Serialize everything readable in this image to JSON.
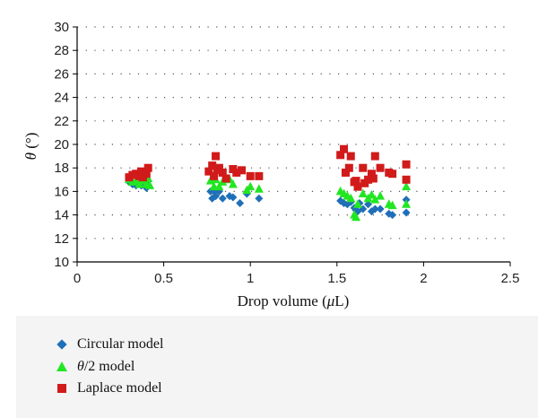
{
  "chart_data": {
    "type": "scatter",
    "xlabel_pre": "Drop volume (",
    "xlabel_mu": "μ",
    "xlabel_post": "L)",
    "ylabel_theta": "θ",
    "ylabel_unit": " (°)",
    "xlim": [
      0,
      2.5
    ],
    "ylim": [
      10,
      30
    ],
    "x_ticks": [
      0,
      0.5,
      1,
      1.5,
      2,
      2.5
    ],
    "x_tick_labels": [
      "0",
      "0.5",
      "1",
      "1.5",
      "2",
      "2.5"
    ],
    "y_ticks": [
      10,
      12,
      14,
      16,
      18,
      20,
      22,
      24,
      26,
      28,
      30
    ],
    "y_tick_labels": [
      "10",
      "12",
      "14",
      "16",
      "18",
      "20",
      "22",
      "24",
      "26",
      "28",
      "30"
    ],
    "grid": "horizontal dotted",
    "legend_position": "below",
    "series": [
      {
        "name": "Circular model",
        "legend_theta": "",
        "legend_text": "Circular model",
        "marker": "diamond",
        "color": "#1f6fb8",
        "points": [
          [
            0.3,
            16.8
          ],
          [
            0.32,
            16.6
          ],
          [
            0.34,
            16.5
          ],
          [
            0.36,
            16.7
          ],
          [
            0.37,
            16.5
          ],
          [
            0.38,
            16.6
          ],
          [
            0.4,
            16.3
          ],
          [
            0.41,
            16.5
          ],
          [
            0.77,
            16.0
          ],
          [
            0.78,
            15.4
          ],
          [
            0.79,
            16.0
          ],
          [
            0.8,
            15.6
          ],
          [
            0.82,
            16.0
          ],
          [
            0.84,
            15.4
          ],
          [
            0.88,
            15.6
          ],
          [
            0.9,
            15.5
          ],
          [
            0.94,
            15.0
          ],
          [
            0.98,
            15.8
          ],
          [
            1.05,
            15.4
          ],
          [
            1.52,
            15.2
          ],
          [
            1.54,
            15.0
          ],
          [
            1.56,
            14.9
          ],
          [
            1.58,
            15.1
          ],
          [
            1.6,
            14.6
          ],
          [
            1.61,
            14.4
          ],
          [
            1.62,
            14.3
          ],
          [
            1.63,
            15.0
          ],
          [
            1.65,
            14.5
          ],
          [
            1.68,
            14.9
          ],
          [
            1.7,
            14.3
          ],
          [
            1.72,
            14.5
          ],
          [
            1.75,
            14.5
          ],
          [
            1.8,
            14.1
          ],
          [
            1.82,
            14.0
          ],
          [
            1.9,
            15.3
          ],
          [
            1.9,
            14.2
          ]
        ]
      },
      {
        "name": "θ/2 model",
        "legend_theta": "θ",
        "legend_text": "/2 model",
        "marker": "triangle",
        "color": "#22e622",
        "points": [
          [
            0.3,
            17.0
          ],
          [
            0.32,
            16.8
          ],
          [
            0.34,
            16.9
          ],
          [
            0.36,
            16.6
          ],
          [
            0.38,
            16.9
          ],
          [
            0.4,
            16.6
          ],
          [
            0.41,
            17.1
          ],
          [
            0.42,
            16.5
          ],
          [
            0.77,
            16.9
          ],
          [
            0.79,
            16.4
          ],
          [
            0.8,
            17.0
          ],
          [
            0.82,
            16.4
          ],
          [
            0.84,
            16.8
          ],
          [
            0.88,
            17.0
          ],
          [
            0.9,
            16.6
          ],
          [
            0.98,
            16.1
          ],
          [
            1.0,
            16.4
          ],
          [
            1.05,
            16.2
          ],
          [
            1.52,
            16.0
          ],
          [
            1.54,
            15.8
          ],
          [
            1.56,
            15.6
          ],
          [
            1.58,
            15.4
          ],
          [
            1.6,
            14.0
          ],
          [
            1.61,
            13.8
          ],
          [
            1.62,
            14.9
          ],
          [
            1.65,
            15.8
          ],
          [
            1.68,
            15.4
          ],
          [
            1.7,
            15.7
          ],
          [
            1.72,
            15.3
          ],
          [
            1.75,
            15.6
          ],
          [
            1.8,
            14.9
          ],
          [
            1.82,
            14.8
          ],
          [
            1.9,
            16.4
          ],
          [
            1.9,
            14.9
          ]
        ]
      },
      {
        "name": "Laplace model",
        "legend_theta": "",
        "legend_text": "Laplace model",
        "marker": "square",
        "color": "#d11a1a",
        "points": [
          [
            0.3,
            17.2
          ],
          [
            0.32,
            17.4
          ],
          [
            0.34,
            17.5
          ],
          [
            0.36,
            17.3
          ],
          [
            0.37,
            17.7
          ],
          [
            0.38,
            17.2
          ],
          [
            0.4,
            17.5
          ],
          [
            0.41,
            18.0
          ],
          [
            0.76,
            17.7
          ],
          [
            0.78,
            18.2
          ],
          [
            0.79,
            17.3
          ],
          [
            0.8,
            19.0
          ],
          [
            0.81,
            17.8
          ],
          [
            0.82,
            18.0
          ],
          [
            0.84,
            17.6
          ],
          [
            0.86,
            17.1
          ],
          [
            0.9,
            17.9
          ],
          [
            0.92,
            17.6
          ],
          [
            0.95,
            17.8
          ],
          [
            1.0,
            17.3
          ],
          [
            1.05,
            17.3
          ],
          [
            1.52,
            19.1
          ],
          [
            1.54,
            19.6
          ],
          [
            1.55,
            17.6
          ],
          [
            1.57,
            18.0
          ],
          [
            1.58,
            19.0
          ],
          [
            1.6,
            16.8
          ],
          [
            1.61,
            16.9
          ],
          [
            1.62,
            16.4
          ],
          [
            1.65,
            18.0
          ],
          [
            1.66,
            16.7
          ],
          [
            1.68,
            17.0
          ],
          [
            1.7,
            17.5
          ],
          [
            1.71,
            17.1
          ],
          [
            1.72,
            19.0
          ],
          [
            1.75,
            18.0
          ],
          [
            1.8,
            17.6
          ],
          [
            1.82,
            17.5
          ],
          [
            1.9,
            18.3
          ],
          [
            1.9,
            17.0
          ]
        ]
      }
    ]
  }
}
